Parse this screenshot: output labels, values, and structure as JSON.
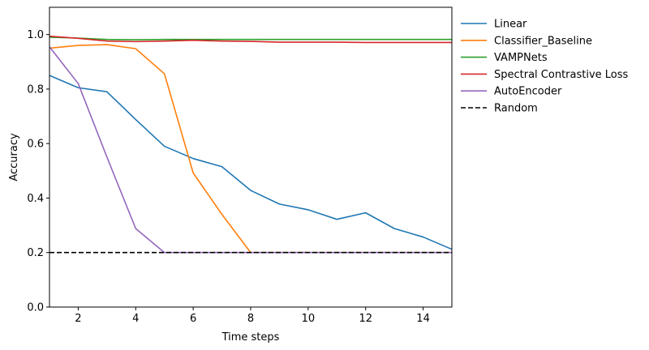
{
  "chart_data": {
    "type": "line",
    "title": "",
    "xlabel": "Time steps",
    "ylabel": "Accuracy",
    "xlim": [
      1,
      15
    ],
    "ylim": [
      0,
      1.1
    ],
    "xticks": [
      2,
      4,
      6,
      8,
      10,
      12,
      14
    ],
    "yticks": [
      0.0,
      0.2,
      0.4,
      0.6,
      0.8,
      1.0
    ],
    "ytick_labels": [
      "0.0",
      "0.2",
      "0.4",
      "0.6",
      "0.8",
      "1.0"
    ],
    "grid": false,
    "legend_position": "outside-right",
    "series": [
      {
        "name": "Linear",
        "color": "#1f77b4",
        "dash": "solid",
        "x": [
          1,
          2,
          3,
          4,
          5,
          6,
          7,
          8,
          9,
          10,
          11,
          12,
          13,
          14,
          15
        ],
        "y": [
          0.85,
          0.805,
          0.79,
          0.688,
          0.59,
          0.545,
          0.515,
          0.428,
          0.378,
          0.357,
          0.322,
          0.346,
          0.288,
          0.257,
          0.212
        ]
      },
      {
        "name": "Classifier_Baseline",
        "color": "#ff7f0e",
        "dash": "solid",
        "x": [
          1,
          2,
          3,
          4,
          5,
          6,
          7,
          8,
          9,
          10,
          11,
          12,
          13,
          14,
          15
        ],
        "y": [
          0.95,
          0.96,
          0.963,
          0.948,
          0.856,
          0.492,
          0.34,
          0.2,
          0.2,
          0.2,
          0.2,
          0.2,
          0.2,
          0.2,
          0.2
        ]
      },
      {
        "name": "VAMPNets",
        "color": "#2ca02c",
        "dash": "solid",
        "x": [
          1,
          2,
          3,
          4,
          5,
          6,
          7,
          8,
          9,
          10,
          11,
          12,
          13,
          14,
          15
        ],
        "y": [
          0.99,
          0.987,
          0.982,
          0.981,
          0.982,
          0.982,
          0.982,
          0.982,
          0.982,
          0.982,
          0.982,
          0.982,
          0.982,
          0.982,
          0.982
        ]
      },
      {
        "name": "Spectral Contrastive Loss",
        "color": "#d62728",
        "dash": "solid",
        "x": [
          1,
          2,
          3,
          4,
          5,
          6,
          7,
          8,
          9,
          10,
          11,
          12,
          13,
          14,
          15
        ],
        "y": [
          0.994,
          0.986,
          0.976,
          0.974,
          0.976,
          0.979,
          0.976,
          0.975,
          0.972,
          0.972,
          0.972,
          0.971,
          0.971,
          0.971,
          0.971
        ]
      },
      {
        "name": "AutoEncoder",
        "color": "#9467bd",
        "dash": "solid",
        "x": [
          1,
          2,
          3,
          4,
          5,
          6,
          7,
          8,
          9,
          10,
          11,
          12,
          13,
          14,
          15
        ],
        "y": [
          0.955,
          0.82,
          0.55,
          0.288,
          0.2,
          0.2,
          0.2,
          0.2,
          0.2,
          0.2,
          0.2,
          0.2,
          0.2,
          0.2,
          0.2
        ]
      },
      {
        "name": "Random",
        "color": "#000000",
        "dash": "dashed",
        "x": [
          1,
          15
        ],
        "y": [
          0.2,
          0.2
        ]
      }
    ]
  }
}
